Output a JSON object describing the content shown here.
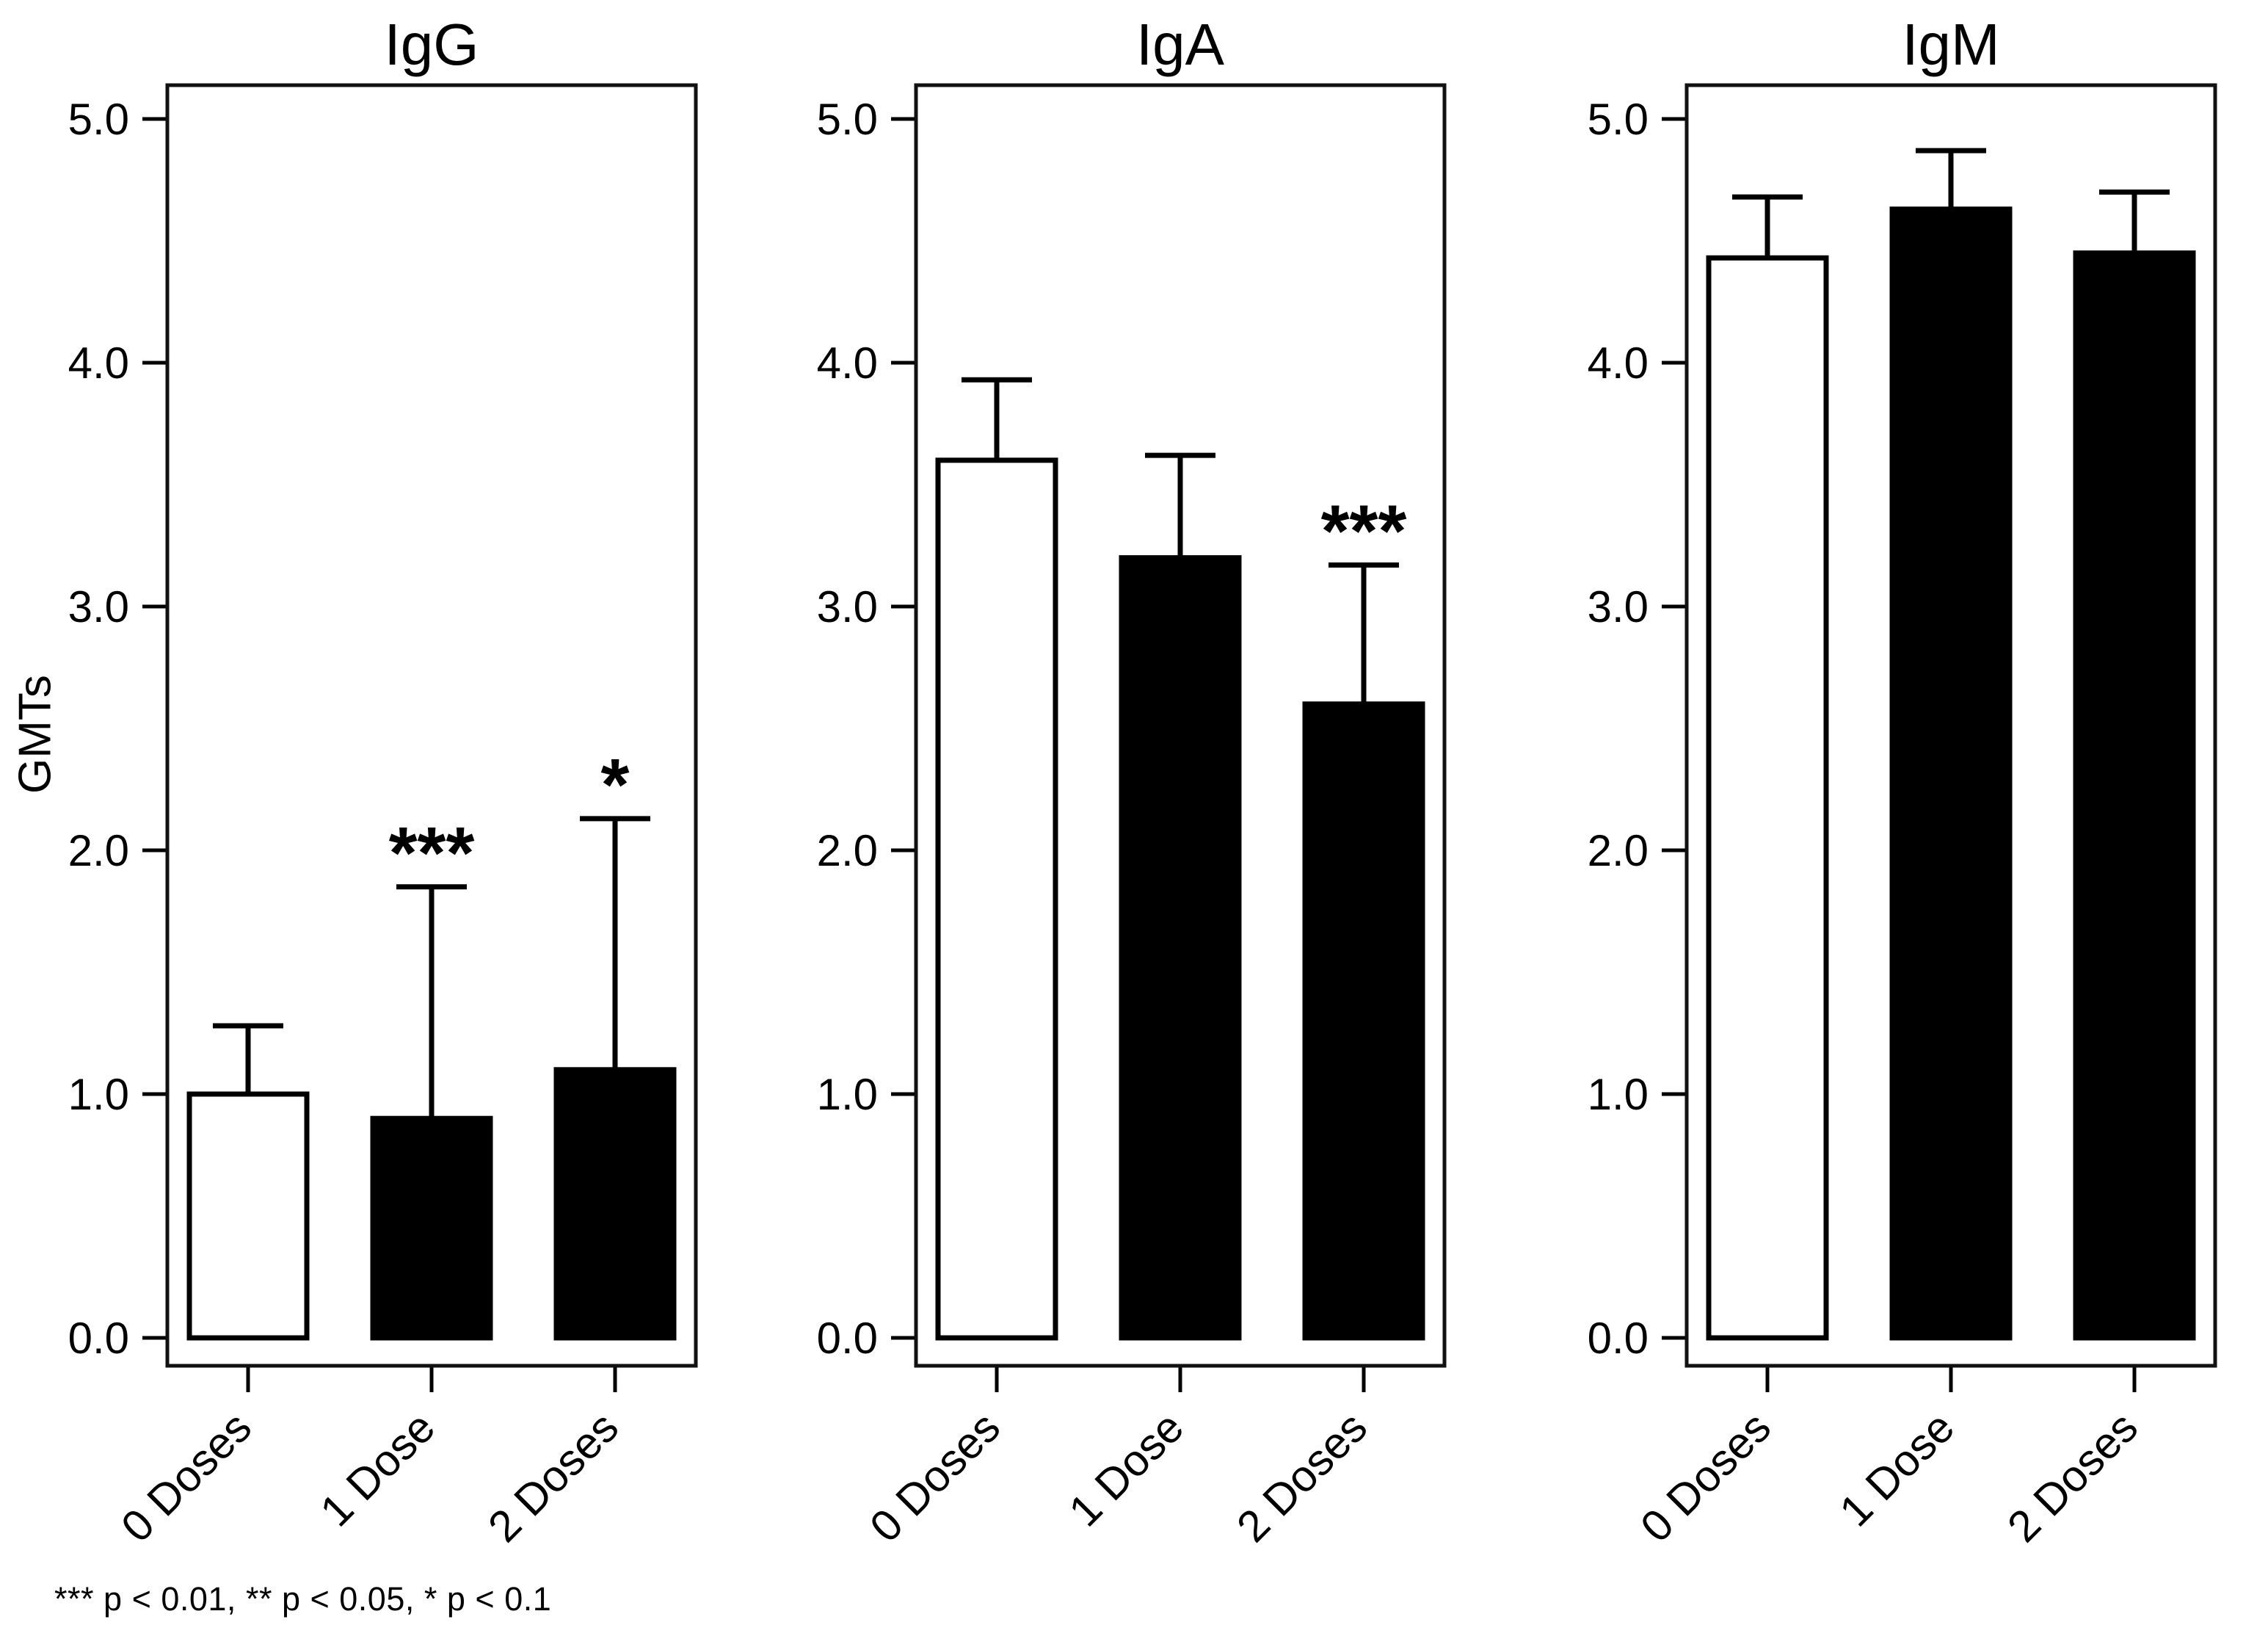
{
  "chart_data": {
    "type": "bar",
    "ylabel": "GMTs",
    "categories": [
      "0 Doses",
      "1 Dose",
      "2 Doses"
    ],
    "ylim": [
      0,
      5
    ],
    "ytick_labels": [
      "0.0",
      "1.0",
      "2.0",
      "3.0",
      "4.0",
      "5.0"
    ],
    "grid": false,
    "legend": "none",
    "bar_fills": [
      "#ffffff",
      "#000000",
      "#000000"
    ],
    "bar_edge_color": "#000000",
    "error_bars": "upper-whisker-with-cap",
    "panels": [
      {
        "title": "IgG",
        "values": [
          1.0,
          0.9,
          1.1
        ],
        "error_upper": [
          1.28,
          1.85,
          2.13
        ],
        "significance": [
          "",
          "***",
          "*"
        ]
      },
      {
        "title": "IgA",
        "values": [
          3.6,
          3.2,
          2.6
        ],
        "error_upper": [
          3.93,
          3.62,
          3.17
        ],
        "significance": [
          "",
          "",
          "***"
        ]
      },
      {
        "title": "IgM",
        "values": [
          4.43,
          4.63,
          4.45
        ],
        "error_upper": [
          4.68,
          4.87,
          4.7
        ],
        "significance": [
          "",
          "",
          ""
        ]
      }
    ],
    "footnote": "*** p < 0.01, ** p < 0.05, * p < 0.1"
  }
}
